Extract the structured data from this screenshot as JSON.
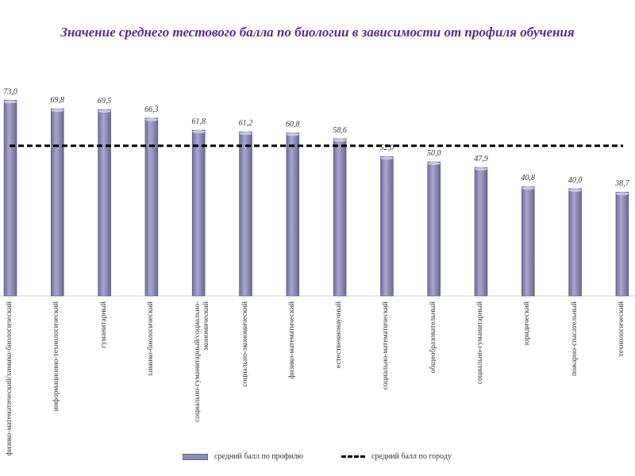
{
  "chart_data": {
    "type": "bar",
    "title": "Значение среднего тестового балла по биологии в зависимости от профиля обучения",
    "categories": [
      "физико-математический/химико-биологический",
      "информационно-технологический",
      "гуманитарный",
      "химико-биологический",
      "социально-гуманитарный/социально-экономический",
      "социально-экономический",
      "физико-математический",
      "естественнонаучный",
      "социально-математический",
      "общеобразовательный",
      "социально-гуманитарный",
      "юридический",
      "пожарно-спасательный",
      "технологический"
    ],
    "series": [
      {
        "name": "средний балл по профилю",
        "type": "bar",
        "values": [
          73.0,
          69.8,
          69.5,
          66.3,
          61.8,
          61.2,
          60.8,
          58.6,
          52.0,
          50.0,
          47.9,
          40.8,
          40.0,
          38.7
        ],
        "labels": [
          "73,0",
          "69,8",
          "69,5",
          "66,3",
          "61,8",
          "61,2",
          "60,8",
          "58,6",
          "52,0",
          "50,0",
          "47,9",
          "40,8",
          "40,0",
          "38,7"
        ]
      },
      {
        "name": "средний балл по городу",
        "type": "line",
        "style": "dashed",
        "value": 56
      }
    ],
    "ylim": [
      0,
      73
    ],
    "grid": false,
    "legend": "bottom",
    "colors": {
      "bar": "#8e8cb8",
      "line": "#000000",
      "title": "#5b2a8a"
    }
  }
}
